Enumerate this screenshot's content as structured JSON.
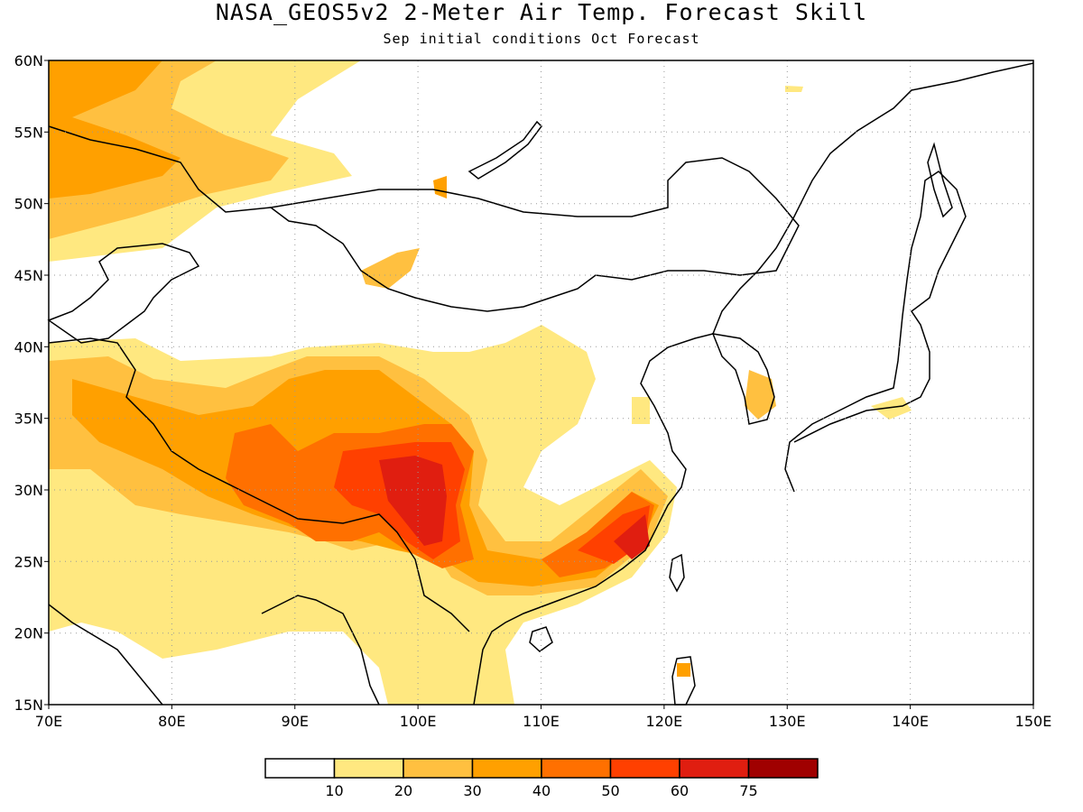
{
  "header": {
    "title": "NASA_GEOS5v2 2-Meter Air Temp. Forecast Skill",
    "subtitle": "Sep initial conditions  Oct Forecast"
  },
  "map": {
    "lon_range": [
      70,
      150
    ],
    "lat_range": [
      15,
      60
    ],
    "lon_ticks": [
      "70E",
      "80E",
      "90E",
      "100E",
      "110E",
      "120E",
      "130E",
      "140E",
      "150E"
    ],
    "lat_ticks": [
      "15N",
      "20N",
      "25N",
      "30N",
      "35N",
      "40N",
      "45N",
      "50N",
      "55N",
      "60N"
    ],
    "gridlines": "dotted"
  },
  "legend": {
    "labels": [
      "10",
      "20",
      "30",
      "40",
      "50",
      "60",
      "75"
    ],
    "colors": [
      "#ffffff",
      "#ffe880",
      "#ffc040",
      "#ffa000",
      "#ff7000",
      "#ff4000",
      "#e01e10",
      "#a00000"
    ]
  }
}
